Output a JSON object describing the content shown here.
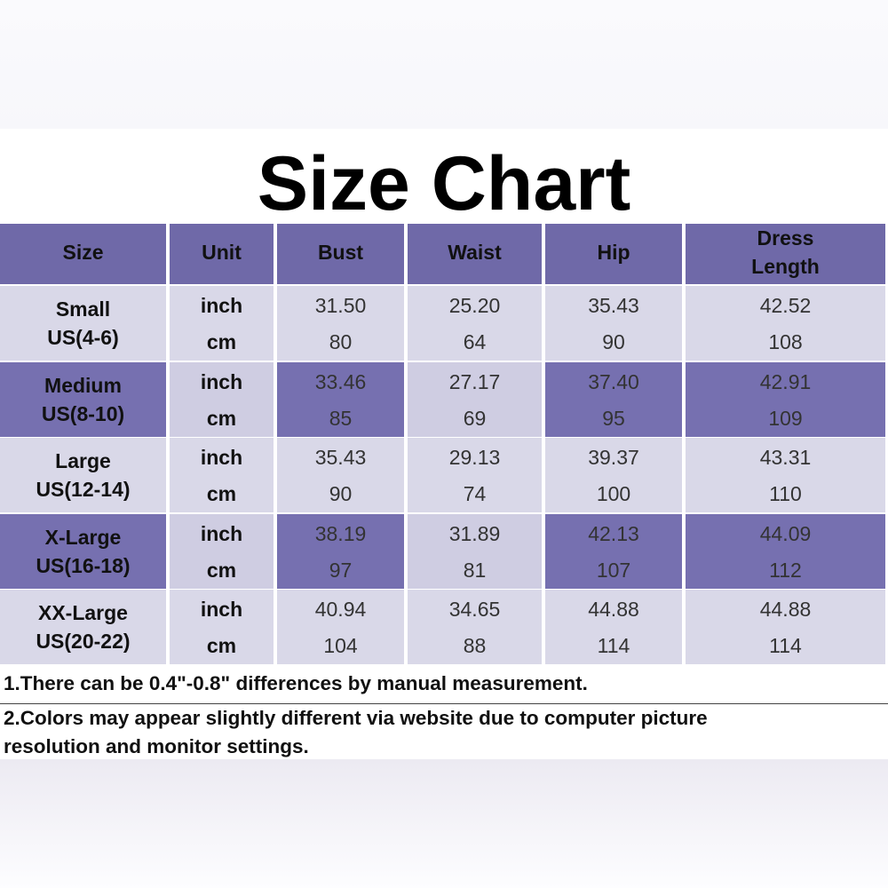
{
  "title": "Size Chart",
  "table": {
    "header": [
      [
        "Size"
      ],
      [
        "Unit"
      ],
      [
        "Bust"
      ],
      [
        "Waist"
      ],
      [
        "Hip"
      ],
      [
        "Dress",
        "Length"
      ]
    ],
    "units": [
      "inch",
      "cm"
    ],
    "rows": [
      {
        "size": [
          "Small",
          "US(4-6)"
        ],
        "inch": [
          "31.50",
          "25.20",
          "35.43",
          "42.52"
        ],
        "cm": [
          "80",
          "64",
          "90",
          "108"
        ]
      },
      {
        "size": [
          "Medium",
          "US(8-10)"
        ],
        "inch": [
          "33.46",
          "27.17",
          "37.40",
          "42.91"
        ],
        "cm": [
          "85",
          "69",
          "95",
          "109"
        ]
      },
      {
        "size": [
          "Large",
          "US(12-14)"
        ],
        "inch": [
          "35.43",
          "29.13",
          "39.37",
          "43.31"
        ],
        "cm": [
          "90",
          "74",
          "100",
          "110"
        ]
      },
      {
        "size": [
          "X-Large",
          "US(16-18)"
        ],
        "inch": [
          "38.19",
          "31.89",
          "42.13",
          "44.09"
        ],
        "cm": [
          "97",
          "81",
          "107",
          "112"
        ]
      },
      {
        "size": [
          "XX-Large",
          "US(20-22)"
        ],
        "inch": [
          "40.94",
          "34.65",
          "44.88",
          "44.88"
        ],
        "cm": [
          "104",
          "88",
          "114",
          "114"
        ]
      }
    ]
  },
  "notes": [
    [
      "1.There can be 0.4\"-0.8\" differences by manual measurement."
    ],
    [
      "2.Colors may appear slightly different via website due to computer picture",
      "resolution and monitor settings."
    ]
  ]
}
